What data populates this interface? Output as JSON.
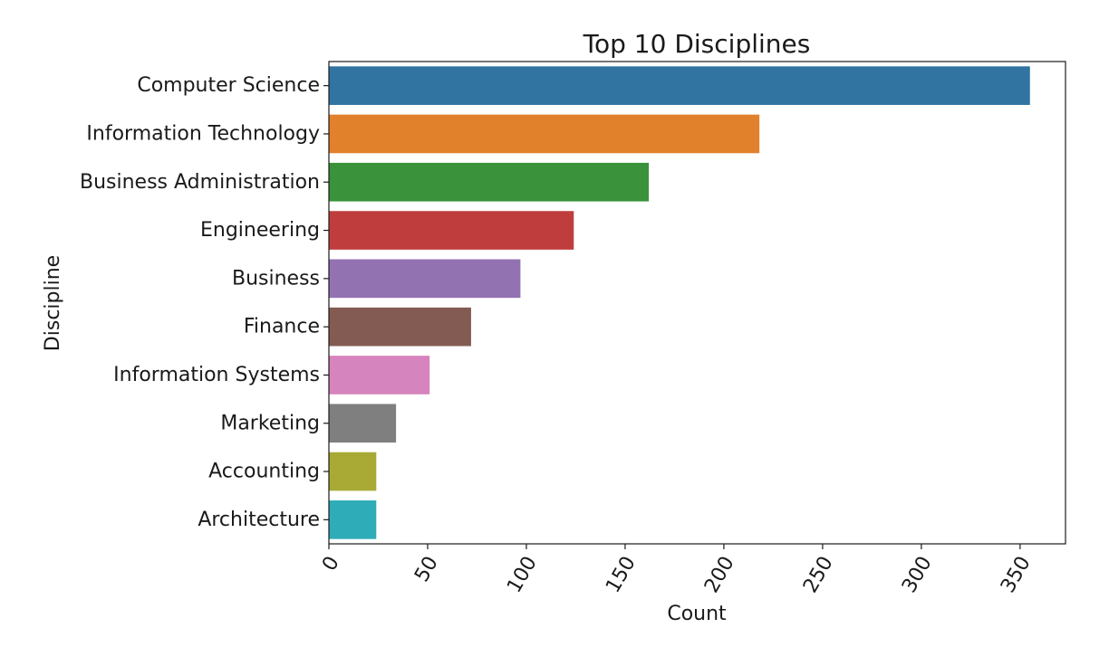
{
  "chart_data": {
    "type": "bar",
    "orientation": "horizontal",
    "title": "Top 10 Disciplines",
    "xlabel": "Count",
    "ylabel": "Discipline",
    "categories": [
      "Computer Science",
      "Information Technology",
      "Business Administration",
      "Engineering",
      "Business",
      "Finance",
      "Information Systems",
      "Marketing",
      "Accounting",
      "Architecture"
    ],
    "values": [
      355,
      218,
      162,
      124,
      97,
      72,
      51,
      34,
      24,
      24
    ],
    "colors": [
      "#3274a1",
      "#e1812c",
      "#3a923a",
      "#c03d3e",
      "#9372b2",
      "#845b53",
      "#d684bd",
      "#7f7f7f",
      "#a9aa35",
      "#2eacb8"
    ],
    "xlim": [
      0,
      373
    ],
    "xticks": [
      0,
      50,
      100,
      150,
      200,
      250,
      300,
      350
    ],
    "xtick_rotation": -60,
    "grid": false,
    "legend": "none"
  }
}
